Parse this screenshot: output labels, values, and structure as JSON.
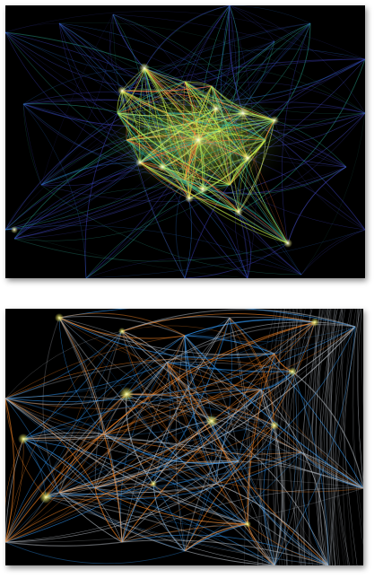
{
  "images": [
    {
      "kind": "flight-paths-continental",
      "colors": {
        "background": "#000000",
        "dense": "#c6f04a",
        "medium": "#2fb39a",
        "sparse": "#3b3fb8",
        "accent": "#ff7a3a",
        "hub": "#ffffff"
      }
    },
    {
      "kind": "flight-paths-regional",
      "colors": {
        "background": "#000000",
        "blue": "#2f8fe6",
        "orange": "#ff8a26",
        "grey": "#b9c0c8",
        "hub": "#f6f36a"
      }
    }
  ]
}
